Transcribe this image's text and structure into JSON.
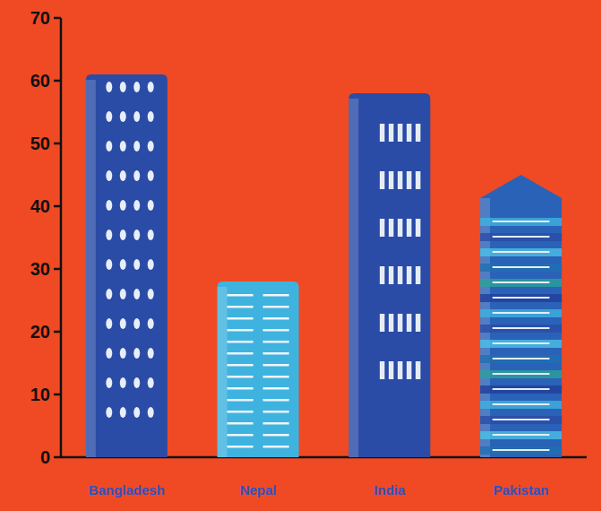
{
  "chart_data": {
    "type": "bar",
    "categories": [
      "Bangladesh",
      "Nepal",
      "India",
      "Pakistan"
    ],
    "values": [
      61,
      28,
      58,
      45
    ],
    "colors": [
      "#2a4ca6",
      "#3fb3df",
      "#2a4ca6",
      "#2a62b8"
    ],
    "ylim": [
      0,
      70
    ],
    "yticks": [
      0,
      10,
      20,
      30,
      40,
      50,
      60,
      70
    ],
    "grid": false
  }
}
